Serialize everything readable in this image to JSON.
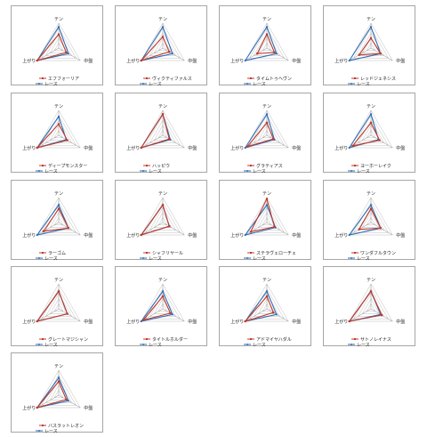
{
  "colors": {
    "horse": "#c0392b",
    "race": "#2e6eb5",
    "grid": "#bdbdbd",
    "axis": "#8c8c8c"
  },
  "chart_data": [
    {
      "type": "radar",
      "axes": [
        "テン",
        "中盤",
        "上がり"
      ],
      "series": [
        {
          "name": "エフフォーリア",
          "values": [
            0.55,
            0.35,
            1.0
          ]
        },
        {
          "name": "レース",
          "values": [
            0.85,
            0.45,
            1.0
          ]
        }
      ],
      "legend": "bottom"
    },
    {
      "type": "radar",
      "axes": [
        "テン",
        "中盤",
        "上がり"
      ],
      "series": [
        {
          "name": "ヴィクティファルス",
          "values": [
            0.45,
            0.3,
            1.0
          ]
        },
        {
          "name": "レース",
          "values": [
            0.85,
            0.45,
            1.0
          ]
        }
      ],
      "legend": "bottom"
    },
    {
      "type": "radar",
      "axes": [
        "テン",
        "中盤",
        "上がり"
      ],
      "series": [
        {
          "name": "タイムトゥヘヴン",
          "values": [
            0.55,
            0.35,
            0.45
          ]
        },
        {
          "name": "レース",
          "values": [
            0.85,
            0.45,
            1.0
          ]
        }
      ],
      "legend": "bottom"
    },
    {
      "type": "radar",
      "axes": [
        "テン",
        "中盤",
        "上がり"
      ],
      "series": [
        {
          "name": "レッドジェネシス",
          "values": [
            0.4,
            0.45,
            0.55
          ]
        },
        {
          "name": "レース",
          "values": [
            0.85,
            0.45,
            1.0
          ]
        }
      ],
      "legend": "bottom"
    },
    {
      "type": "radar",
      "axes": [
        "テン",
        "中盤",
        "上がり"
      ],
      "series": [
        {
          "name": "ディープモンスター",
          "values": [
            0.45,
            0.4,
            1.0
          ]
        },
        {
          "name": "レース",
          "values": [
            0.75,
            0.35,
            1.0
          ]
        }
      ],
      "legend": "bottom"
    },
    {
      "type": "radar",
      "axes": [
        "テン",
        "中盤",
        "上がり"
      ],
      "series": [
        {
          "name": "ハッピウ",
          "values": [
            0.85,
            0.3,
            1.0
          ]
        },
        {
          "name": "レース",
          "values": [
            0.85,
            0.35,
            1.0
          ]
        }
      ],
      "legend": "bottom"
    },
    {
      "type": "radar",
      "axes": [
        "テン",
        "中盤",
        "上がり"
      ],
      "series": [
        {
          "name": "グラティアス",
          "values": [
            0.5,
            0.3,
            0.9
          ]
        },
        {
          "name": "レース",
          "values": [
            0.85,
            0.35,
            1.0
          ]
        }
      ],
      "legend": "bottom"
    },
    {
      "type": "radar",
      "axes": [
        "テン",
        "中盤",
        "上がり"
      ],
      "series": [
        {
          "name": "ヨーホーレイク",
          "values": [
            0.5,
            0.4,
            0.85
          ]
        },
        {
          "name": "レース",
          "values": [
            0.85,
            0.35,
            1.0
          ]
        }
      ],
      "legend": "bottom"
    },
    {
      "type": "radar",
      "axes": [
        "テン",
        "中盤",
        "上がり"
      ],
      "series": [
        {
          "name": "ラーゴム",
          "values": [
            0.55,
            0.45,
            0.7
          ]
        },
        {
          "name": "レース",
          "values": [
            0.7,
            0.45,
            1.0
          ]
        }
      ],
      "legend": "bottom"
    },
    {
      "type": "radar",
      "axes": [
        "テン",
        "中盤",
        "上がり"
      ],
      "series": [
        {
          "name": "シャフリヤール",
          "values": [
            0.7,
            0.3,
            1.0
          ]
        },
        {
          "name": "レース",
          "values": [
            0.7,
            0.3,
            1.0
          ]
        }
      ],
      "legend": "bottom"
    },
    {
      "type": "radar",
      "axes": [
        "テン",
        "中盤",
        "上がり"
      ],
      "series": [
        {
          "name": "ステラヴェローチェ",
          "values": [
            0.95,
            0.35,
            0.75
          ]
        },
        {
          "name": "レース",
          "values": [
            0.7,
            0.4,
            1.0
          ]
        }
      ],
      "legend": "bottom"
    },
    {
      "type": "radar",
      "axes": [
        "テン",
        "中盤",
        "上がり"
      ],
      "series": [
        {
          "name": "ワンダフルタウン",
          "values": [
            0.55,
            0.45,
            0.55
          ]
        },
        {
          "name": "レース",
          "values": [
            0.7,
            0.45,
            1.0
          ]
        }
      ],
      "legend": "bottom"
    },
    {
      "type": "radar",
      "axes": [
        "テン",
        "中盤",
        "上がり"
      ],
      "series": [
        {
          "name": "グレートマジシャン",
          "values": [
            0.7,
            0.4,
            1.0
          ]
        },
        {
          "name": "レース",
          "values": [
            0.7,
            0.4,
            1.0
          ]
        }
      ],
      "legend": "bottom"
    },
    {
      "type": "radar",
      "axes": [
        "テン",
        "中盤",
        "上がり"
      ],
      "series": [
        {
          "name": "タイトルホルダー",
          "values": [
            0.5,
            0.35,
            0.9
          ]
        },
        {
          "name": "レース",
          "values": [
            0.7,
            0.45,
            1.0
          ]
        }
      ],
      "legend": "bottom"
    },
    {
      "type": "radar",
      "axes": [
        "テン",
        "中盤",
        "上がり"
      ],
      "series": [
        {
          "name": "アドマイヤハダル",
          "values": [
            0.5,
            0.3,
            1.0
          ]
        },
        {
          "name": "レース",
          "values": [
            0.7,
            0.45,
            1.0
          ]
        }
      ],
      "legend": "bottom"
    },
    {
      "type": "radar",
      "axes": [
        "テン",
        "中盤",
        "上がり"
      ],
      "series": [
        {
          "name": "サトノレイナス",
          "values": [
            0.7,
            0.5,
            1.0
          ]
        },
        {
          "name": "レース",
          "values": [
            0.7,
            0.45,
            1.0
          ]
        }
      ],
      "legend": "bottom"
    },
    {
      "type": "radar",
      "axes": [
        "テン",
        "中盤",
        "上がり"
      ],
      "series": [
        {
          "name": "バスラットレオン",
          "values": [
            0.55,
            0.35,
            1.0
          ]
        },
        {
          "name": "レース",
          "values": [
            0.7,
            0.45,
            1.0
          ]
        }
      ],
      "legend": "bottom"
    }
  ]
}
